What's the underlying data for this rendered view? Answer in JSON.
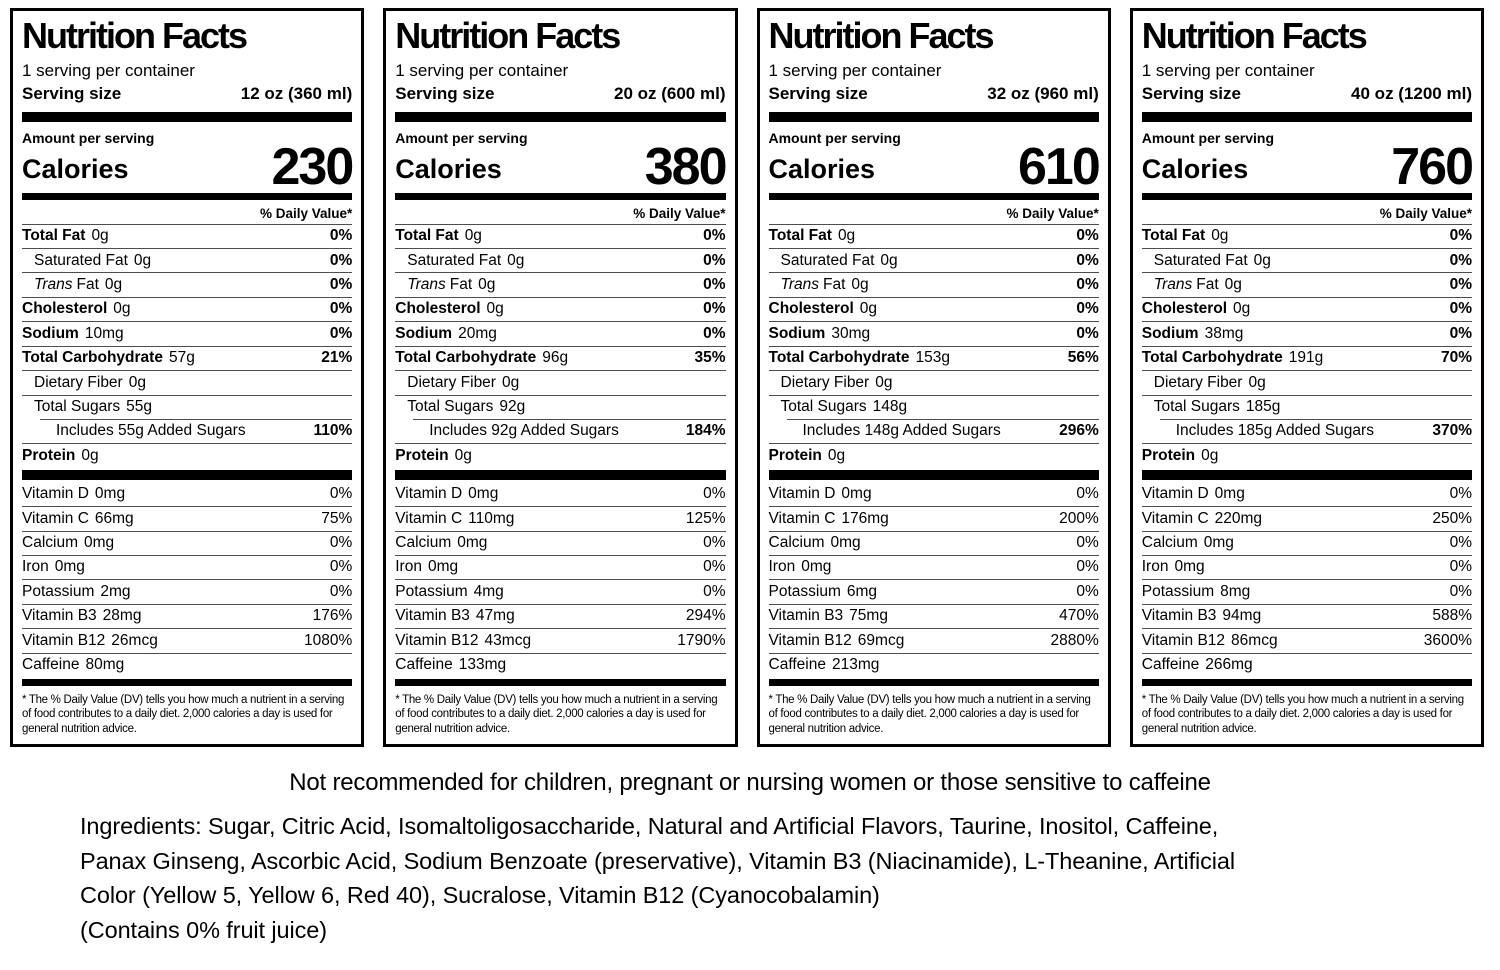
{
  "shared": {
    "title": "Nutrition Facts",
    "servings_per_container": "1 serving per container",
    "serving_size_label": "Serving size",
    "amount_per_serving": "Amount per serving",
    "calories_label": "Calories",
    "daily_value_header": "% Daily Value*",
    "footnote": "* The % Daily Value (DV) tells you how much a nutrient in a serving of food contributes to a daily diet. 2,000 calories a day is used for general nutrition advice."
  },
  "labels": [
    {
      "serving_size": "12 oz (360 ml)",
      "calories": "230",
      "main_rows": [
        {
          "name": "Total Fat",
          "amount": "0g",
          "dv": "0%",
          "bold": true
        },
        {
          "name": "Saturated Fat",
          "amount": "0g",
          "dv": "0%",
          "indent": 1
        },
        {
          "name": "Trans",
          "name2": "Fat",
          "amount": "0g",
          "dv": "0%",
          "indent": 1,
          "italic": true
        },
        {
          "name": "Cholesterol",
          "amount": "0g",
          "dv": "0%",
          "bold": true
        },
        {
          "name": "Sodium",
          "amount": "10mg",
          "dv": "0%",
          "bold": true
        },
        {
          "name": "Total Carbohydrate",
          "amount": "57g",
          "dv": "21%",
          "bold": true
        },
        {
          "name": "Dietary Fiber",
          "amount": "0g",
          "indent": 1
        },
        {
          "name": "Total Sugars",
          "amount": "55g",
          "indent": 1
        },
        {
          "name": "Includes 55g Added Sugars",
          "dv": "110%",
          "includes": true
        },
        {
          "name": "Protein",
          "amount": "0g",
          "bold": true
        }
      ],
      "vitamin_rows": [
        {
          "name": "Vitamin D",
          "amount": "0mg",
          "dv": "0%"
        },
        {
          "name": "Vitamin C",
          "amount": "66mg",
          "dv": "75%"
        },
        {
          "name": "Calcium",
          "amount": "0mg",
          "dv": "0%"
        },
        {
          "name": "Iron",
          "amount": "0mg",
          "dv": "0%"
        },
        {
          "name": "Potassium",
          "amount": "2mg",
          "dv": "0%"
        },
        {
          "name": "Vitamin B3",
          "amount": "28mg",
          "dv": "176%"
        },
        {
          "name": "Vitamin B12",
          "amount": "26mcg",
          "dv": "1080%"
        },
        {
          "name": "Caffeine",
          "amount": "80mg"
        }
      ]
    },
    {
      "serving_size": "20 oz (600 ml)",
      "calories": "380",
      "main_rows": [
        {
          "name": "Total Fat",
          "amount": "0g",
          "dv": "0%",
          "bold": true
        },
        {
          "name": "Saturated Fat",
          "amount": "0g",
          "dv": "0%",
          "indent": 1
        },
        {
          "name": "Trans",
          "name2": "Fat",
          "amount": "0g",
          "dv": "0%",
          "indent": 1,
          "italic": true
        },
        {
          "name": "Cholesterol",
          "amount": "0g",
          "dv": "0%",
          "bold": true
        },
        {
          "name": "Sodium",
          "amount": "20mg",
          "dv": "0%",
          "bold": true
        },
        {
          "name": "Total Carbohydrate",
          "amount": "96g",
          "dv": "35%",
          "bold": true
        },
        {
          "name": "Dietary Fiber",
          "amount": "0g",
          "indent": 1
        },
        {
          "name": "Total Sugars",
          "amount": "92g",
          "indent": 1
        },
        {
          "name": "Includes 92g Added Sugars",
          "dv": "184%",
          "includes": true
        },
        {
          "name": "Protein",
          "amount": "0g",
          "bold": true
        }
      ],
      "vitamin_rows": [
        {
          "name": "Vitamin D",
          "amount": "0mg",
          "dv": "0%"
        },
        {
          "name": "Vitamin C",
          "amount": "110mg",
          "dv": "125%"
        },
        {
          "name": "Calcium",
          "amount": "0mg",
          "dv": "0%"
        },
        {
          "name": "Iron",
          "amount": "0mg",
          "dv": "0%"
        },
        {
          "name": "Potassium",
          "amount": "4mg",
          "dv": "0%"
        },
        {
          "name": "Vitamin B3",
          "amount": "47mg",
          "dv": "294%"
        },
        {
          "name": "Vitamin B12",
          "amount": "43mcg",
          "dv": "1790%"
        },
        {
          "name": "Caffeine",
          "amount": "133mg"
        }
      ]
    },
    {
      "serving_size": "32 oz (960 ml)",
      "calories": "610",
      "main_rows": [
        {
          "name": "Total Fat",
          "amount": "0g",
          "dv": "0%",
          "bold": true
        },
        {
          "name": "Saturated Fat",
          "amount": "0g",
          "dv": "0%",
          "indent": 1
        },
        {
          "name": "Trans",
          "name2": "Fat",
          "amount": "0g",
          "dv": "0%",
          "indent": 1,
          "italic": true
        },
        {
          "name": "Cholesterol",
          "amount": "0g",
          "dv": "0%",
          "bold": true
        },
        {
          "name": "Sodium",
          "amount": "30mg",
          "dv": "0%",
          "bold": true
        },
        {
          "name": "Total Carbohydrate",
          "amount": "153g",
          "dv": "56%",
          "bold": true
        },
        {
          "name": "Dietary Fiber",
          "amount": "0g",
          "indent": 1
        },
        {
          "name": "Total Sugars",
          "amount": "148g",
          "indent": 1
        },
        {
          "name": "Includes 148g Added Sugars",
          "dv": "296%",
          "includes": true
        },
        {
          "name": "Protein",
          "amount": "0g",
          "bold": true
        }
      ],
      "vitamin_rows": [
        {
          "name": "Vitamin D",
          "amount": "0mg",
          "dv": "0%"
        },
        {
          "name": "Vitamin C",
          "amount": "176mg",
          "dv": "200%"
        },
        {
          "name": "Calcium",
          "amount": "0mg",
          "dv": "0%"
        },
        {
          "name": "Iron",
          "amount": "0mg",
          "dv": "0%"
        },
        {
          "name": "Potassium",
          "amount": "6mg",
          "dv": "0%"
        },
        {
          "name": "Vitamin B3",
          "amount": "75mg",
          "dv": "470%"
        },
        {
          "name": "Vitamin B12",
          "amount": "69mcg",
          "dv": "2880%"
        },
        {
          "name": "Caffeine",
          "amount": "213mg"
        }
      ]
    },
    {
      "serving_size": "40 oz (1200 ml)",
      "calories": "760",
      "main_rows": [
        {
          "name": "Total Fat",
          "amount": "0g",
          "dv": "0%",
          "bold": true
        },
        {
          "name": "Saturated Fat",
          "amount": "0g",
          "dv": "0%",
          "indent": 1
        },
        {
          "name": "Trans",
          "name2": "Fat",
          "amount": "0g",
          "dv": "0%",
          "indent": 1,
          "italic": true
        },
        {
          "name": "Cholesterol",
          "amount": "0g",
          "dv": "0%",
          "bold": true
        },
        {
          "name": "Sodium",
          "amount": "38mg",
          "dv": "0%",
          "bold": true
        },
        {
          "name": "Total Carbohydrate",
          "amount": "191g",
          "dv": "70%",
          "bold": true
        },
        {
          "name": "Dietary Fiber",
          "amount": "0g",
          "indent": 1
        },
        {
          "name": "Total Sugars",
          "amount": "185g",
          "indent": 1
        },
        {
          "name": "Includes 185g Added Sugars",
          "dv": "370%",
          "includes": true
        },
        {
          "name": "Protein",
          "amount": "0g",
          "bold": true
        }
      ],
      "vitamin_rows": [
        {
          "name": "Vitamin D",
          "amount": "0mg",
          "dv": "0%"
        },
        {
          "name": "Vitamin C",
          "amount": "220mg",
          "dv": "250%"
        },
        {
          "name": "Calcium",
          "amount": "0mg",
          "dv": "0%"
        },
        {
          "name": "Iron",
          "amount": "0mg",
          "dv": "0%"
        },
        {
          "name": "Potassium",
          "amount": "8mg",
          "dv": "0%"
        },
        {
          "name": "Vitamin B3",
          "amount": "94mg",
          "dv": "588%"
        },
        {
          "name": "Vitamin B12",
          "amount": "86mcg",
          "dv": "3600%"
        },
        {
          "name": "Caffeine",
          "amount": "266mg"
        }
      ]
    }
  ],
  "footer": {
    "warning": "Not recommended for children, pregnant or nursing women or those sensitive to caffeine",
    "ingredients_lines": [
      "Ingredients: Sugar, Citric Acid, Isomaltoligosaccharide, Natural and Artificial Flavors, Taurine, Inositol, Caffeine,",
      "Panax Ginseng, Ascorbic Acid, Sodium Benzoate (preservative), Vitamin B3 (Niacinamide), L-Theanine, Artificial",
      "Color (Yellow 5, Yellow 6, Red 40), Sucralose, Vitamin B12 (Cyanocobalamin)",
      "(Contains 0% fruit juice)"
    ]
  }
}
